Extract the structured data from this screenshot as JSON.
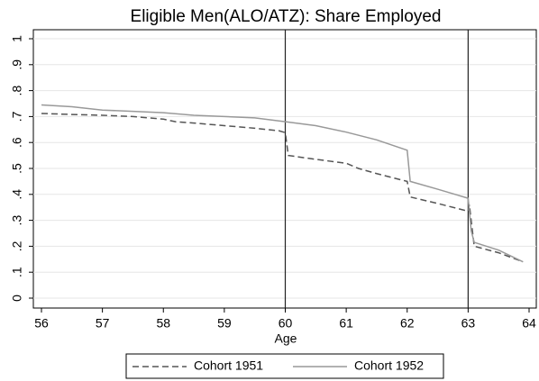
{
  "chart_data": {
    "type": "line",
    "title": "Eligible Men(ALO/ATZ): Share Employed",
    "x_label": "Age",
    "xlim": [
      56,
      64
    ],
    "xticks": [
      56,
      57,
      58,
      59,
      60,
      61,
      62,
      63,
      64
    ],
    "ylim": [
      0,
      1
    ],
    "yticks": [
      0,
      {
        "value": 0.1,
        "label": ".1"
      },
      {
        "value": 0.2,
        "label": ".2"
      },
      {
        "value": 0.3,
        "label": ".3"
      },
      {
        "value": 0.4,
        "label": ".4"
      },
      {
        "value": 0.5,
        "label": ".5"
      },
      {
        "value": 0.6,
        "label": ".6"
      },
      {
        "value": 0.7,
        "label": ".7"
      },
      {
        "value": 0.8,
        "label": ".8"
      },
      {
        "value": 0.9,
        "label": ".9"
      },
      1
    ],
    "grid": true,
    "xlines": [
      60,
      63
    ],
    "legend": "bottom",
    "series": [
      {
        "name": "Cohort 1951",
        "color": "#555555",
        "dash": true,
        "x": [
          56,
          56.5,
          57,
          57.5,
          58,
          58.2,
          58.5,
          59,
          59.5,
          59.9,
          60,
          60.05,
          60.5,
          61,
          61.2,
          61.5,
          62,
          62.05,
          62.5,
          63,
          63.02,
          63.1,
          63.5,
          63.9
        ],
        "values": [
          0.712,
          0.708,
          0.705,
          0.7,
          0.69,
          0.68,
          0.675,
          0.665,
          0.655,
          0.645,
          0.638,
          0.55,
          0.535,
          0.52,
          0.5,
          0.48,
          0.45,
          0.39,
          0.365,
          0.335,
          0.36,
          0.2,
          0.175,
          0.14
        ]
      },
      {
        "name": "Cohort 1952",
        "color": "#999999",
        "dash": false,
        "x": [
          56,
          56.5,
          57,
          57.5,
          58,
          58.5,
          59,
          59.5,
          60,
          60.5,
          61,
          61.5,
          62,
          62.05,
          62.5,
          63,
          63.05,
          63.1,
          63.5,
          63.9
        ],
        "values": [
          0.745,
          0.738,
          0.725,
          0.72,
          0.715,
          0.705,
          0.7,
          0.695,
          0.68,
          0.665,
          0.64,
          0.61,
          0.57,
          0.45,
          0.42,
          0.385,
          0.26,
          0.215,
          0.185,
          0.14
        ]
      }
    ]
  }
}
